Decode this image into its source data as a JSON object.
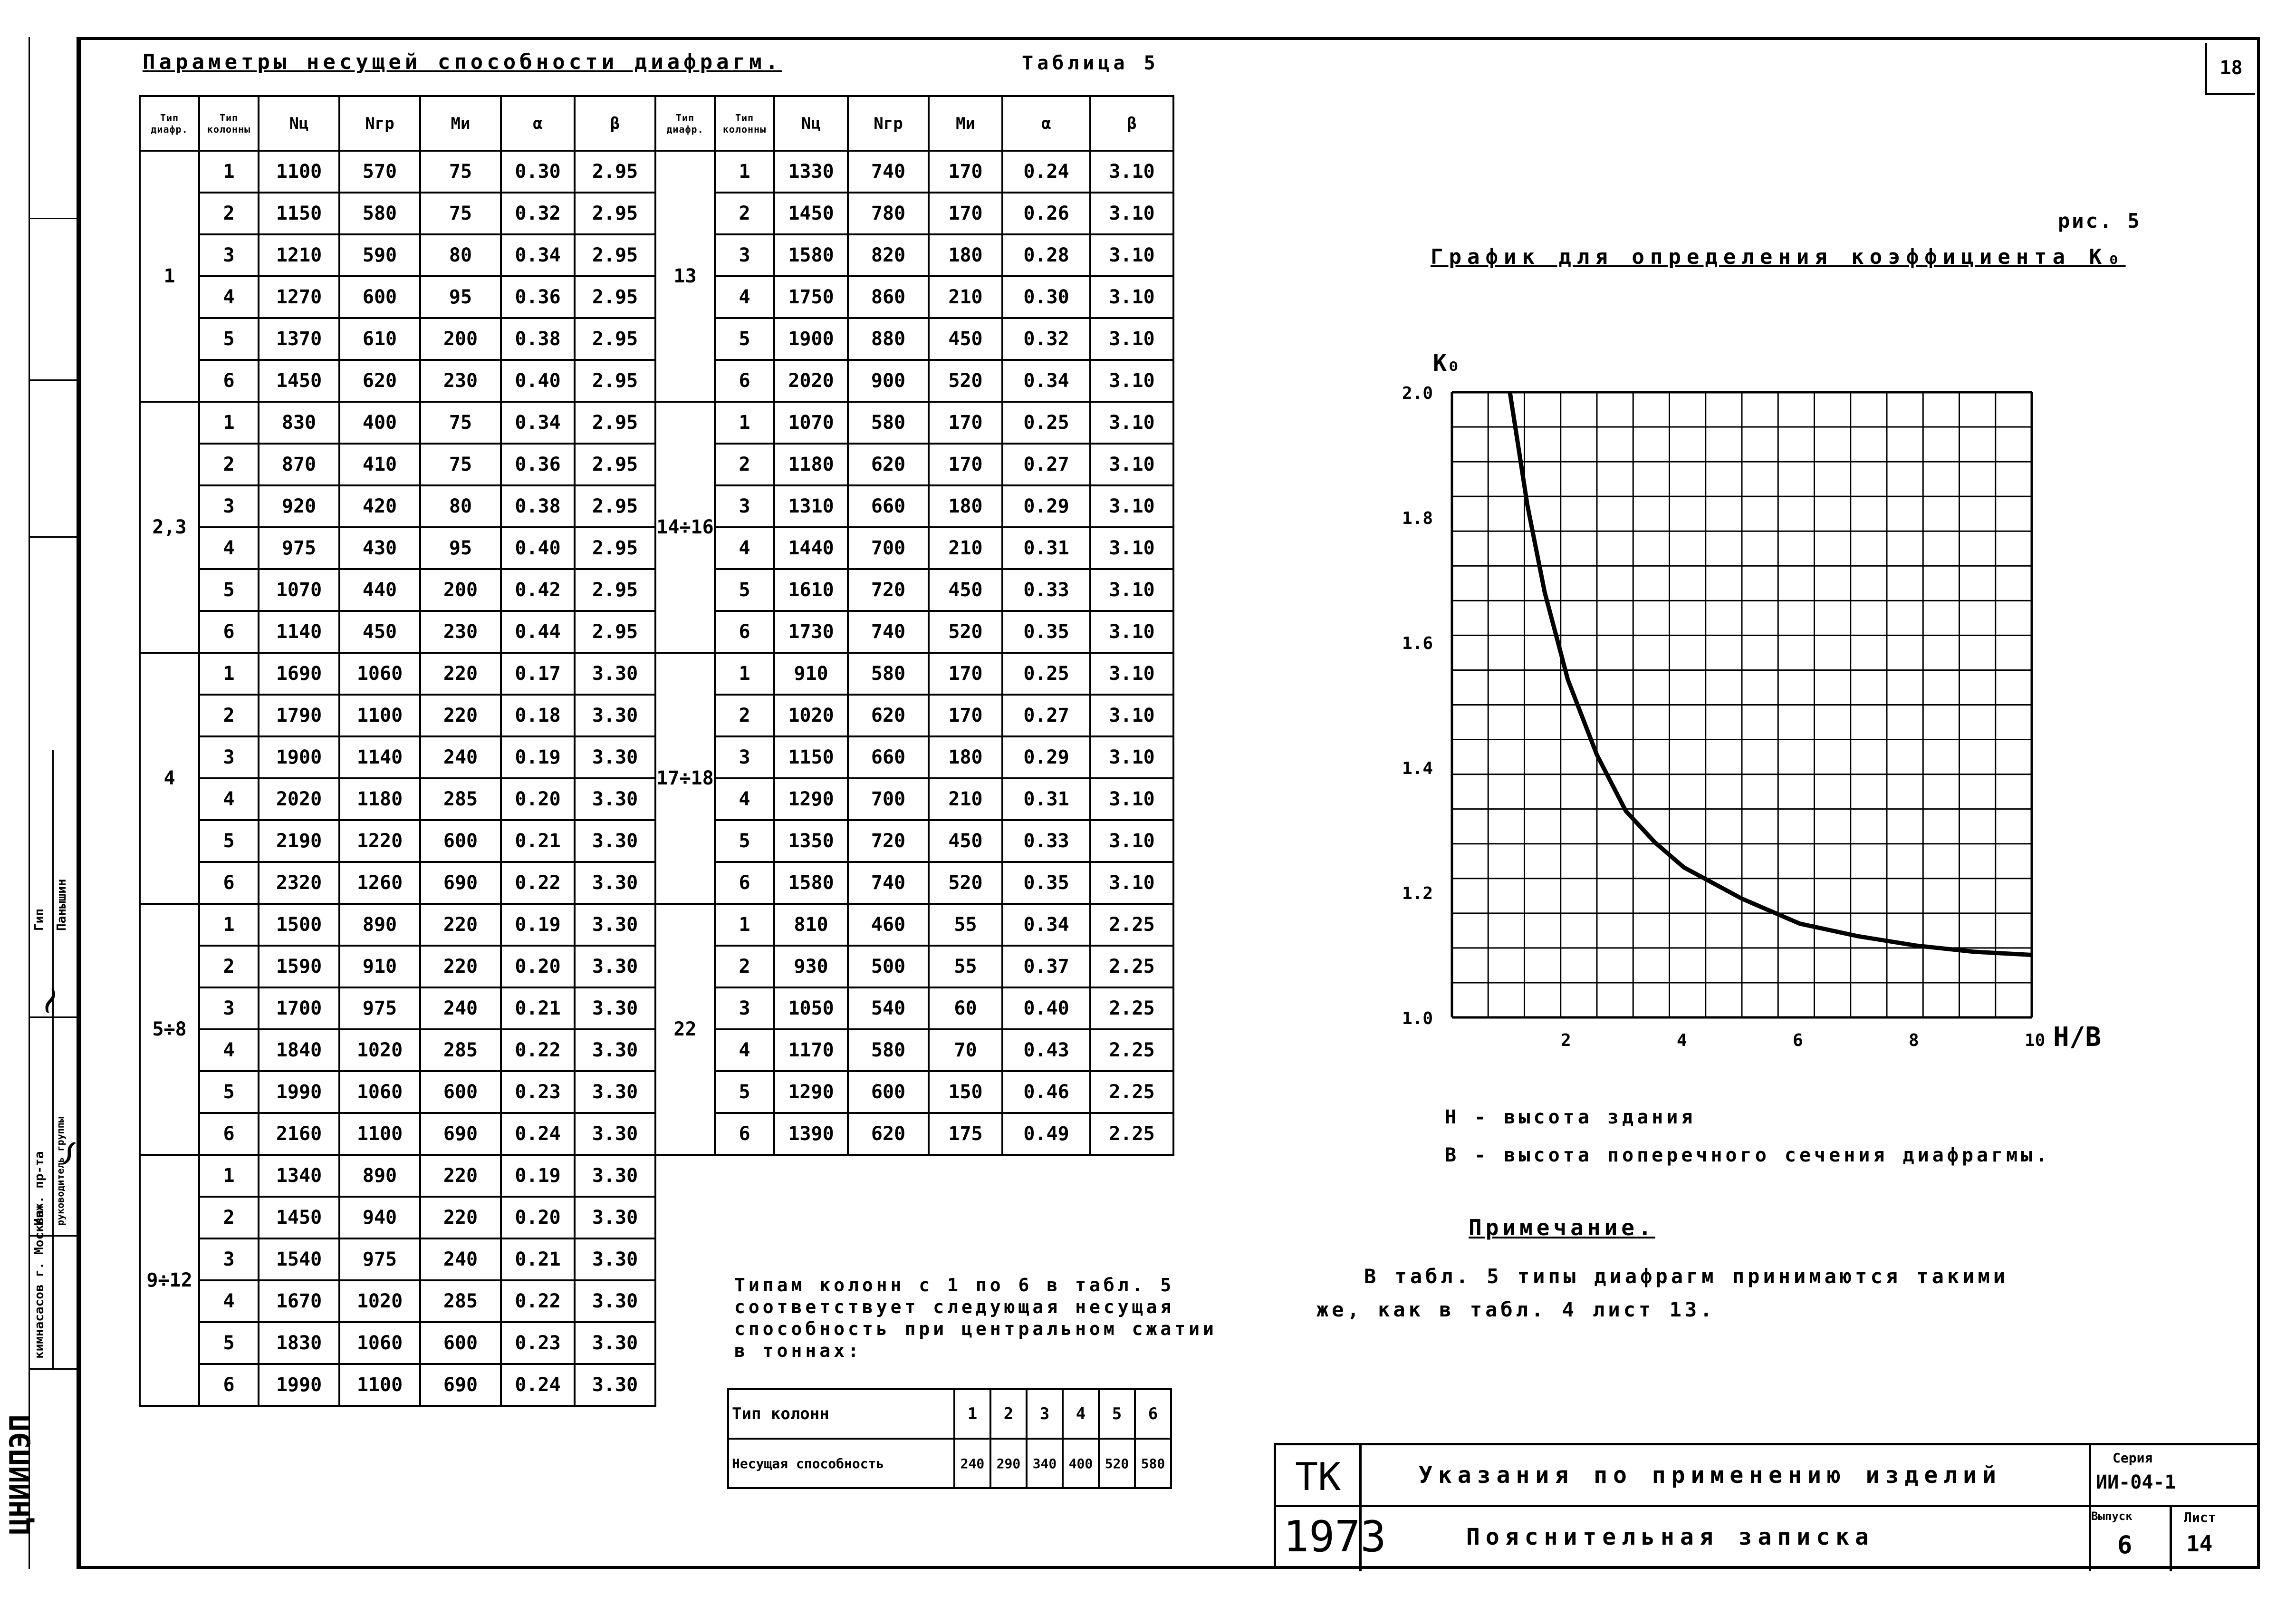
{
  "sheet_number": "18",
  "table": {
    "title": "Параметры несущей способности диафрагм.",
    "label": "Таблица 5",
    "headers": [
      "Тип диафр.",
      "Тип колонны",
      "Nц",
      "Nгр",
      "Mи",
      "α",
      "β",
      "Тип диафр.",
      "Тип колонны",
      "Nц",
      "Nгр",
      "Mи",
      "α",
      "β"
    ],
    "left_groups": [
      {
        "diaphragm": "1",
        "rows": [
          [
            "1",
            "1100",
            "570",
            "75",
            "0.30",
            "2.95"
          ],
          [
            "2",
            "1150",
            "580",
            "75",
            "0.32",
            "2.95"
          ],
          [
            "3",
            "1210",
            "590",
            "80",
            "0.34",
            "2.95"
          ],
          [
            "4",
            "1270",
            "600",
            "95",
            "0.36",
            "2.95"
          ],
          [
            "5",
            "1370",
            "610",
            "200",
            "0.38",
            "2.95"
          ],
          [
            "6",
            "1450",
            "620",
            "230",
            "0.40",
            "2.95"
          ]
        ]
      },
      {
        "diaphragm": "2,3",
        "rows": [
          [
            "1",
            "830",
            "400",
            "75",
            "0.34",
            "2.95"
          ],
          [
            "2",
            "870",
            "410",
            "75",
            "0.36",
            "2.95"
          ],
          [
            "3",
            "920",
            "420",
            "80",
            "0.38",
            "2.95"
          ],
          [
            "4",
            "975",
            "430",
            "95",
            "0.40",
            "2.95"
          ],
          [
            "5",
            "1070",
            "440",
            "200",
            "0.42",
            "2.95"
          ],
          [
            "6",
            "1140",
            "450",
            "230",
            "0.44",
            "2.95"
          ]
        ]
      },
      {
        "diaphragm": "4",
        "rows": [
          [
            "1",
            "1690",
            "1060",
            "220",
            "0.17",
            "3.30"
          ],
          [
            "2",
            "1790",
            "1100",
            "220",
            "0.18",
            "3.30"
          ],
          [
            "3",
            "1900",
            "1140",
            "240",
            "0.19",
            "3.30"
          ],
          [
            "4",
            "2020",
            "1180",
            "285",
            "0.20",
            "3.30"
          ],
          [
            "5",
            "2190",
            "1220",
            "600",
            "0.21",
            "3.30"
          ],
          [
            "6",
            "2320",
            "1260",
            "690",
            "0.22",
            "3.30"
          ]
        ]
      },
      {
        "diaphragm": "5÷8",
        "rows": [
          [
            "1",
            "1500",
            "890",
            "220",
            "0.19",
            "3.30"
          ],
          [
            "2",
            "1590",
            "910",
            "220",
            "0.20",
            "3.30"
          ],
          [
            "3",
            "1700",
            "975",
            "240",
            "0.21",
            "3.30"
          ],
          [
            "4",
            "1840",
            "1020",
            "285",
            "0.22",
            "3.30"
          ],
          [
            "5",
            "1990",
            "1060",
            "600",
            "0.23",
            "3.30"
          ],
          [
            "6",
            "2160",
            "1100",
            "690",
            "0.24",
            "3.30"
          ]
        ]
      },
      {
        "diaphragm": "9÷12",
        "rows": [
          [
            "1",
            "1340",
            "890",
            "220",
            "0.19",
            "3.30"
          ],
          [
            "2",
            "1450",
            "940",
            "220",
            "0.20",
            "3.30"
          ],
          [
            "3",
            "1540",
            "975",
            "240",
            "0.21",
            "3.30"
          ],
          [
            "4",
            "1670",
            "1020",
            "285",
            "0.22",
            "3.30"
          ],
          [
            "5",
            "1830",
            "1060",
            "600",
            "0.23",
            "3.30"
          ],
          [
            "6",
            "1990",
            "1100",
            "690",
            "0.24",
            "3.30"
          ]
        ]
      }
    ],
    "right_groups": [
      {
        "diaphragm": "13",
        "rows": [
          [
            "1",
            "1330",
            "740",
            "170",
            "0.24",
            "3.10"
          ],
          [
            "2",
            "1450",
            "780",
            "170",
            "0.26",
            "3.10"
          ],
          [
            "3",
            "1580",
            "820",
            "180",
            "0.28",
            "3.10"
          ],
          [
            "4",
            "1750",
            "860",
            "210",
            "0.30",
            "3.10"
          ],
          [
            "5",
            "1900",
            "880",
            "450",
            "0.32",
            "3.10"
          ],
          [
            "6",
            "2020",
            "900",
            "520",
            "0.34",
            "3.10"
          ]
        ]
      },
      {
        "diaphragm": "14÷16",
        "rows": [
          [
            "1",
            "1070",
            "580",
            "170",
            "0.25",
            "3.10"
          ],
          [
            "2",
            "1180",
            "620",
            "170",
            "0.27",
            "3.10"
          ],
          [
            "3",
            "1310",
            "660",
            "180",
            "0.29",
            "3.10"
          ],
          [
            "4",
            "1440",
            "700",
            "210",
            "0.31",
            "3.10"
          ],
          [
            "5",
            "1610",
            "720",
            "450",
            "0.33",
            "3.10"
          ],
          [
            "6",
            "1730",
            "740",
            "520",
            "0.35",
            "3.10"
          ]
        ]
      },
      {
        "diaphragm": "17÷18",
        "rows": [
          [
            "1",
            "910",
            "580",
            "170",
            "0.25",
            "3.10"
          ],
          [
            "2",
            "1020",
            "620",
            "170",
            "0.27",
            "3.10"
          ],
          [
            "3",
            "1150",
            "660",
            "180",
            "0.29",
            "3.10"
          ],
          [
            "4",
            "1290",
            "700",
            "210",
            "0.31",
            "3.10"
          ],
          [
            "5",
            "1350",
            "720",
            "450",
            "0.33",
            "3.10"
          ],
          [
            "6",
            "1580",
            "740",
            "520",
            "0.35",
            "3.10"
          ]
        ]
      },
      {
        "diaphragm": "22",
        "rows": [
          [
            "1",
            "810",
            "460",
            "55",
            "0.34",
            "2.25"
          ],
          [
            "2",
            "930",
            "500",
            "55",
            "0.37",
            "2.25"
          ],
          [
            "3",
            "1050",
            "540",
            "60",
            "0.40",
            "2.25"
          ],
          [
            "4",
            "1170",
            "580",
            "70",
            "0.43",
            "2.25"
          ],
          [
            "5",
            "1290",
            "600",
            "150",
            "0.46",
            "2.25"
          ],
          [
            "6",
            "1390",
            "620",
            "175",
            "0.49",
            "2.25"
          ]
        ]
      }
    ]
  },
  "capacity_note": [
    "Типам колонн с 1 по 6 в табл. 5",
    "соответствует следующая несущая",
    "способность при центральном сжатии",
    "в тоннах:"
  ],
  "capacity_table": {
    "row1_label": "Тип колонн",
    "types": [
      "1",
      "2",
      "3",
      "4",
      "5",
      "6"
    ],
    "row2_label": "Несущая способность",
    "values": [
      "240",
      "290",
      "340",
      "400",
      "520",
      "580"
    ]
  },
  "figure": {
    "label": "рис. 5",
    "title": "График для определения коэффициента K₀"
  },
  "chart_data": {
    "type": "line",
    "ylabel": "K₀",
    "xlabel": "H/B",
    "xlim": [
      0,
      10
    ],
    "ylim": [
      1.0,
      2.0
    ],
    "x_ticks": [
      "2",
      "4",
      "6",
      "8",
      "10"
    ],
    "y_ticks": [
      "2.0",
      "1.8",
      "1.6",
      "1.4",
      "1.2",
      "1.0"
    ],
    "grid": true,
    "series": [
      {
        "x": [
          1.0,
          1.3,
          1.6,
          2.0,
          2.5,
          3.0,
          3.5,
          4.0,
          5.0,
          6.0,
          7.0,
          8.0,
          9.0,
          10.0
        ],
        "y": [
          2.0,
          1.82,
          1.68,
          1.54,
          1.42,
          1.33,
          1.28,
          1.24,
          1.19,
          1.15,
          1.13,
          1.115,
          1.105,
          1.1
        ]
      }
    ]
  },
  "legend_text": [
    "H - высота здания",
    "B - высота поперечного сечения диафрагмы."
  ],
  "note_heading": "Примечание.",
  "note_text": [
    "В табл. 5 типы диафрагм принимаются такими",
    "же, как в табл. 4 лист 13."
  ],
  "title_block": {
    "org": "ТК",
    "year": "1973",
    "line1": "Указания по применению изделий",
    "line2": "Пояснительная записка",
    "series_label": "Серия",
    "series_value": "ИИ-04-1",
    "issue_label": "Выпуск",
    "issue_value": "6",
    "sheet_label": "Лист",
    "sheet_value": "14"
  },
  "left_strip": {
    "org": "ЦНИИПЭП",
    "city_label": "кимнасасов г. Москва",
    "role1": "Инж. пр-та",
    "role1_sub": "руководитель группы",
    "role2": "Гип",
    "name": "Панышин"
  }
}
